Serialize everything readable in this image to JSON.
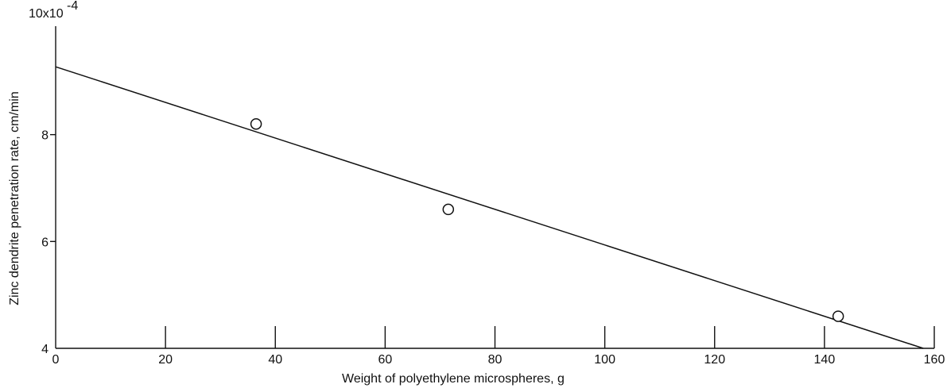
{
  "chart_data": {
    "type": "scatter",
    "title": "",
    "xlabel": "Weight of polyethylene microspheres, g",
    "ylabel": "Zinc dendrite penetration rate, cm/min",
    "y_multiplier_label": "10x10",
    "y_multiplier_exponent": "-4",
    "xlim": [
      0,
      160
    ],
    "ylim": [
      4,
      10
    ],
    "x_ticks": [
      0,
      20,
      40,
      60,
      80,
      100,
      120,
      140,
      160
    ],
    "x_tick_labels": [
      "0",
      "20",
      "40",
      "60",
      "80",
      "100",
      "120",
      "140",
      "160"
    ],
    "y_ticks": [
      4,
      6,
      8
    ],
    "y_tick_labels": [
      "4",
      "6",
      "8"
    ],
    "grid": false,
    "legend": "none",
    "points": [
      {
        "x": 36.5,
        "y": 8.2
      },
      {
        "x": 71.5,
        "y": 6.6
      },
      {
        "x": 142.5,
        "y": 4.6
      }
    ],
    "fit_line": [
      {
        "x": 0,
        "y": 9.27
      },
      {
        "x": 158,
        "y": 4.0
      }
    ],
    "colors": {
      "ink": "#111111",
      "background": "#ffffff"
    }
  }
}
